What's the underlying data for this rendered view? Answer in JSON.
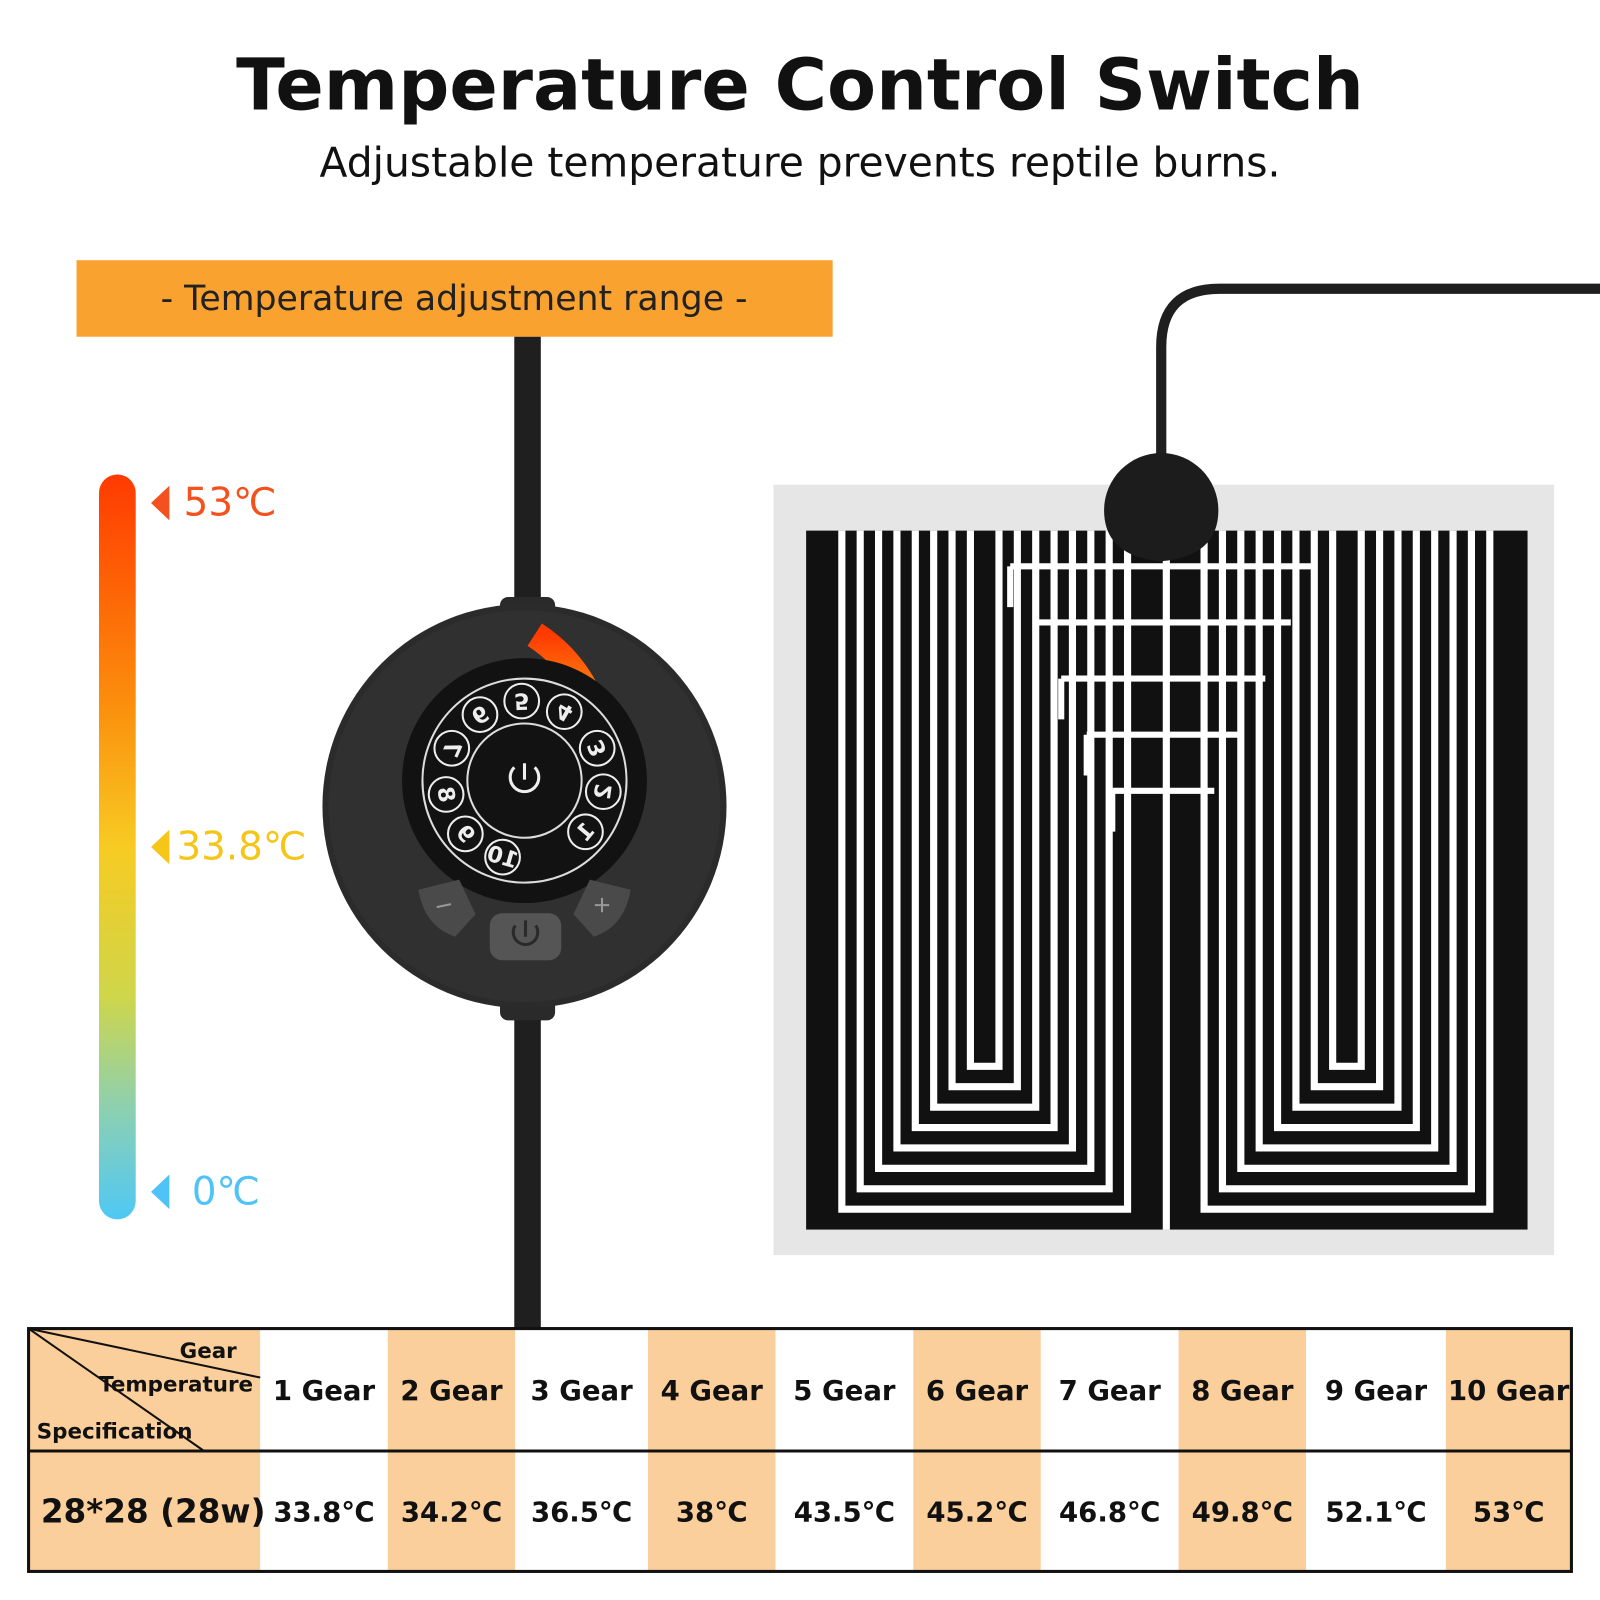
{
  "header": {
    "title": "Temperature Control Switch",
    "subtitle": "Adjustable temperature prevents reptile burns."
  },
  "range_banner": "- Temperature adjustment range -",
  "scale": {
    "max": "53℃",
    "mid": "33.8℃",
    "min": "0℃"
  },
  "dial": [
    "1",
    "2",
    "3",
    "4",
    "5",
    "6",
    "7",
    "8",
    "9",
    "10"
  ],
  "table": {
    "corner": {
      "top": "Gear",
      "middle": "Temperature",
      "bottom": "Specification"
    },
    "columns": [
      "1 Gear",
      "2 Gear",
      "3 Gear",
      "4 Gear",
      "5 Gear",
      "6 Gear",
      "7 Gear",
      "8 Gear",
      "9 Gear",
      "10 Gear"
    ],
    "rows": [
      {
        "label": "28*28 (28w)",
        "cells": [
          "33.8℃",
          "34.2℃",
          "36.5℃",
          "38℃",
          "43.5℃",
          "45.2℃",
          "46.8℃",
          "49.8℃",
          "52.1℃",
          "53℃"
        ]
      }
    ]
  }
}
